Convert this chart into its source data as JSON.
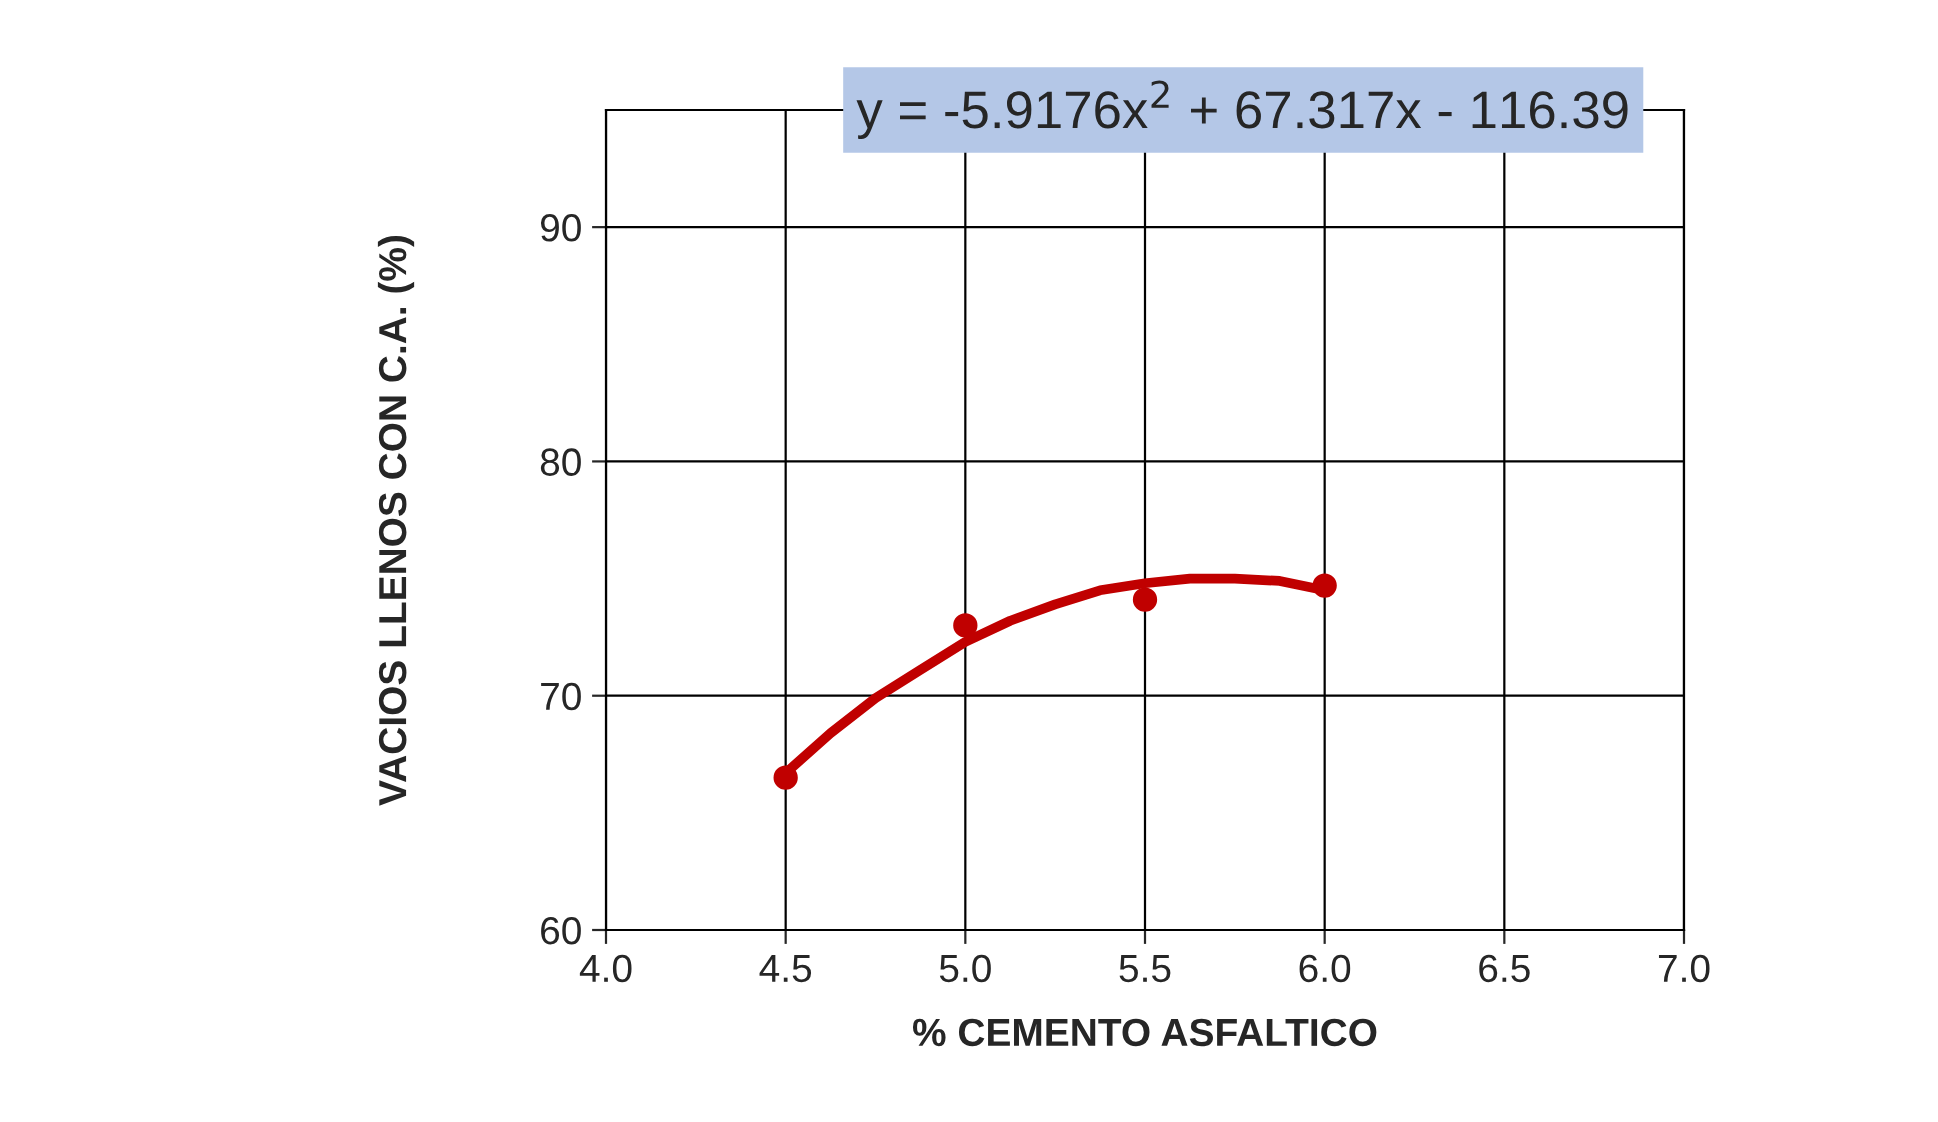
{
  "chart_data": {
    "type": "line",
    "xlabel": "% CEMENTO ASFALTICO",
    "ylabel": "VACIOS LLENOS CON C.A. (%)",
    "xlim": [
      4.0,
      7.0
    ],
    "xticks": [
      {
        "value": 4.0,
        "label": "4.0"
      },
      {
        "value": 4.5,
        "label": "4.5"
      },
      {
        "value": 5.0,
        "label": "5.0"
      },
      {
        "value": 5.5,
        "label": "5.5"
      },
      {
        "value": 6.0,
        "label": "6.0"
      },
      {
        "value": 6.5,
        "label": "6.5"
      },
      {
        "value": 7.0,
        "label": "7.0"
      }
    ],
    "ylim": [
      60,
      95
    ],
    "yticks": [
      60,
      70,
      80,
      90
    ],
    "grid": true,
    "series": [
      {
        "type": "scatter",
        "marker": "circle",
        "color": "#c00000",
        "x": [
          4.5,
          5.0,
          5.5,
          6.0
        ],
        "values": [
          66.5,
          73.0,
          74.1,
          74.7
        ]
      },
      {
        "marker": "none",
        "color": "#c00000",
        "x": [
          4.5,
          4.625,
          4.75,
          4.875,
          5.0,
          5.125,
          5.25,
          5.375,
          5.5,
          5.625,
          5.75,
          5.875,
          6.0
        ],
        "values": [
          66.7,
          68.4,
          69.9,
          71.1,
          72.3,
          73.2,
          73.9,
          74.5,
          74.8,
          75.0,
          75.0,
          74.9,
          74.5
        ]
      }
    ],
    "annotations": [
      "y = -5.9176x$^{2}$ + 67.317x - 116.39"
    ]
  }
}
